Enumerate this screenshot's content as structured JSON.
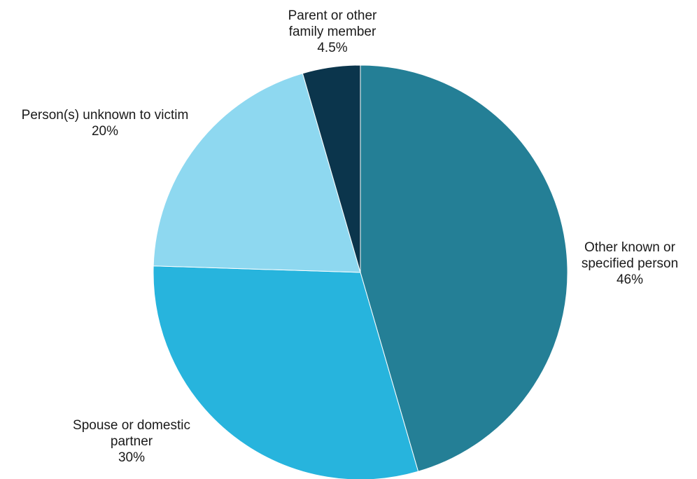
{
  "chart_data": {
    "type": "pie",
    "slices": [
      {
        "name": "Other known or specified person",
        "label_lines": [
          "Other known or",
          "specified person"
        ],
        "value_label": "46%",
        "value": 45.5,
        "color": "#247f96"
      },
      {
        "name": "Spouse or domestic partner",
        "label_lines": [
          "Spouse or domestic",
          "partner"
        ],
        "value_label": "30%",
        "value": 30.0,
        "color": "#27b4dd"
      },
      {
        "name": "Person(s) unknown to victim",
        "label_lines": [
          "Person(s) unknown to victim"
        ],
        "value_label": "20%",
        "value": 20.0,
        "color": "#8ed8f0"
      },
      {
        "name": "Parent or other family member",
        "label_lines": [
          "Parent or other",
          "family member"
        ],
        "value_label": "4.5%",
        "value": 4.5,
        "color": "#0b354c"
      }
    ],
    "start": "top",
    "direction": "clockwise"
  }
}
